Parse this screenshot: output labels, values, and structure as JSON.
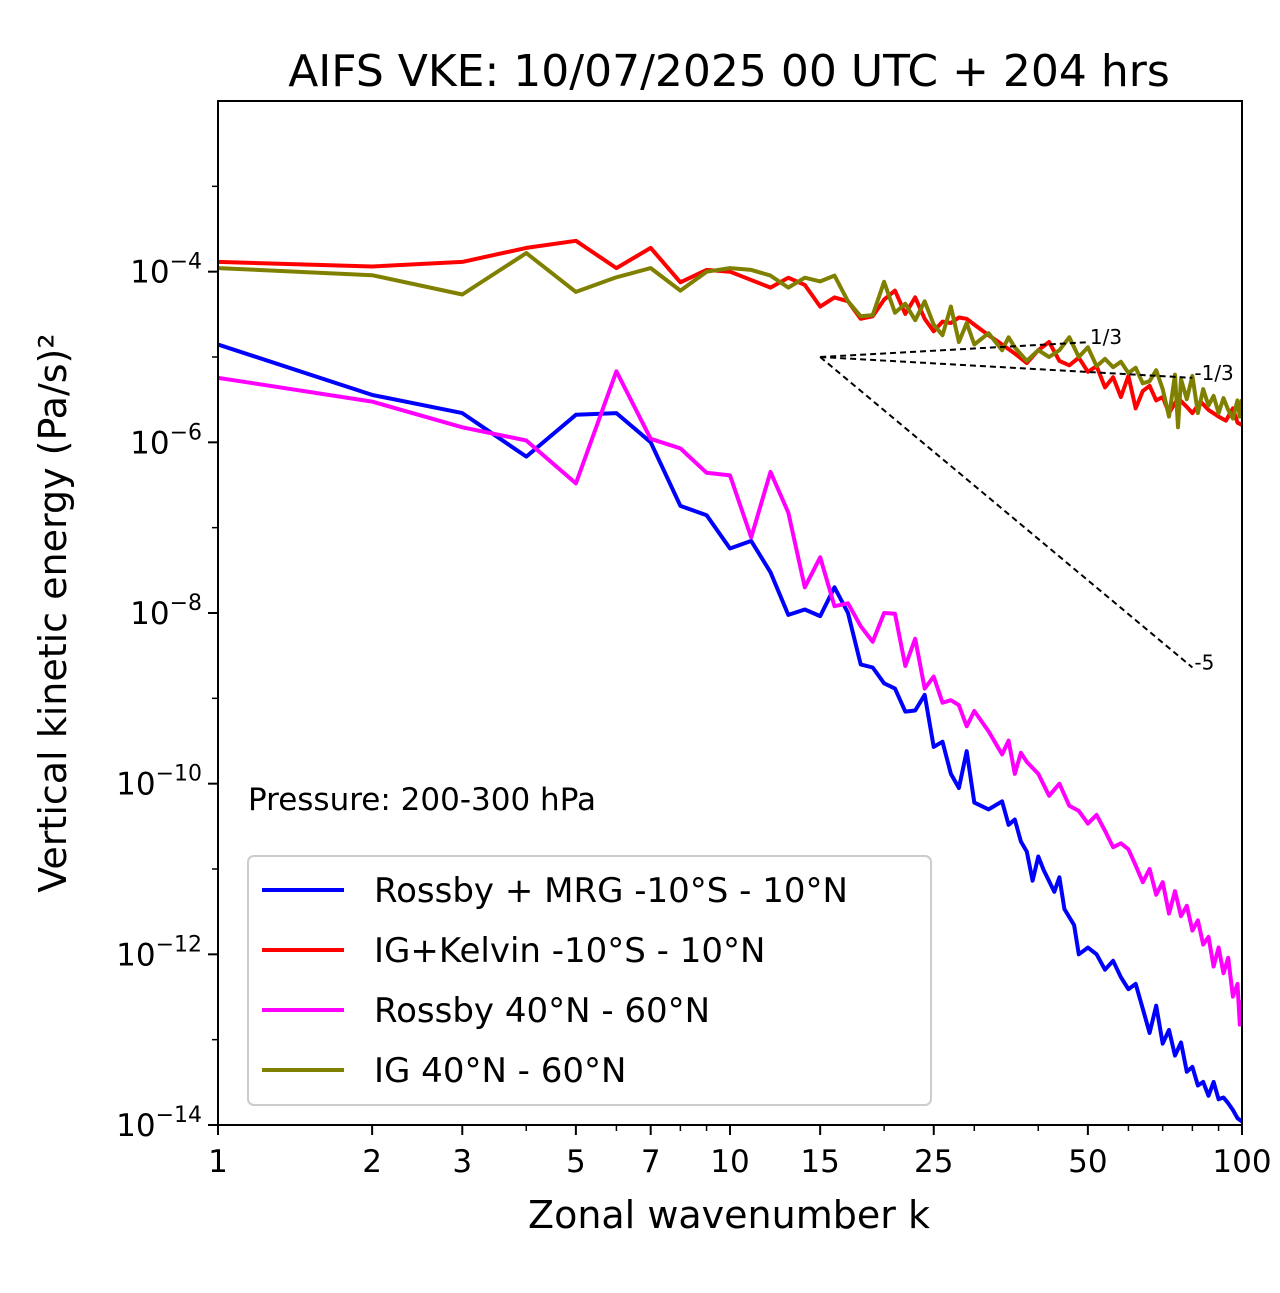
{
  "chart_data": {
    "type": "line",
    "title": "AIFS VKE: 10/07/2025 00 UTC + 204 hrs",
    "xlabel": "Zonal wavenumber k",
    "ylabel": "Vertical kinetic energy (Pa/s)²",
    "x_scale": "log",
    "y_scale": "log",
    "xlim": [
      1,
      100
    ],
    "ylim": [
      1e-14,
      0.01
    ],
    "x_ticks": [
      {
        "value": 1,
        "label": "1"
      },
      {
        "value": 2,
        "label": "2"
      },
      {
        "value": 3,
        "label": "3"
      },
      {
        "value": 5,
        "label": "5"
      },
      {
        "value": 7,
        "label": "7"
      },
      {
        "value": 10,
        "label": "10"
      },
      {
        "value": 15,
        "label": "15"
      },
      {
        "value": 25,
        "label": "25"
      },
      {
        "value": 50,
        "label": "50"
      },
      {
        "value": 100,
        "label": "100"
      }
    ],
    "y_ticks": [
      {
        "exp": -4,
        "label": "10−4"
      },
      {
        "exp": -6,
        "label": "10−6"
      },
      {
        "exp": -8,
        "label": "10−8"
      },
      {
        "exp": -10,
        "label": "10−10"
      },
      {
        "exp": -12,
        "label": "10−12"
      },
      {
        "exp": -14,
        "label": "10−14"
      }
    ],
    "annotation": "Pressure: 200-300 hPa",
    "legend_position": "lower-left",
    "reference_slopes": [
      {
        "label": "1/3",
        "x": [
          15,
          50
        ],
        "y": [
          1e-05,
          1.49e-05
        ]
      },
      {
        "label": "-1/3",
        "x": [
          15,
          80
        ],
        "y": [
          1e-05,
          5.7e-06
        ]
      },
      {
        "label": "-5",
        "x": [
          15,
          80
        ],
        "y": [
          1e-05,
          2.3e-09
        ]
      }
    ],
    "series": [
      {
        "name": "Rossby + MRG -10°S - 10°N",
        "color": "#0000ff",
        "points": [
          [
            1,
            1.4e-05
          ],
          [
            2,
            3.6e-06
          ],
          [
            3,
            2.2e-06
          ],
          [
            4,
            6.8e-07
          ],
          [
            5,
            2.1e-06
          ],
          [
            6,
            2.2e-06
          ],
          [
            7,
            1e-06
          ],
          [
            8,
            1.8e-07
          ],
          [
            9,
            1.4e-07
          ],
          [
            10,
            5.7e-08
          ],
          [
            11,
            7e-08
          ],
          [
            12,
            3e-08
          ],
          [
            13,
            9.5e-09
          ],
          [
            14,
            1.1e-08
          ],
          [
            15,
            9.2e-09
          ],
          [
            16,
            2e-08
          ],
          [
            17,
            1e-08
          ],
          [
            18,
            2.5e-09
          ],
          [
            19,
            2.3e-09
          ],
          [
            20,
            1.5e-09
          ],
          [
            21,
            1.3e-09
          ],
          [
            22,
            7e-10
          ],
          [
            23,
            7.2e-10
          ],
          [
            24,
            1.1e-09
          ],
          [
            25,
            2.7e-10
          ],
          [
            26,
            3.1e-10
          ],
          [
            27,
            1.3e-10
          ],
          [
            28,
            8.9e-11
          ],
          [
            29,
            2.4e-10
          ],
          [
            30,
            6e-11
          ],
          [
            32,
            5e-11
          ],
          [
            34,
            6.2e-11
          ],
          [
            35,
            3.3e-11
          ],
          [
            36,
            3.8e-11
          ],
          [
            37,
            2.1e-11
          ],
          [
            38,
            1.6e-11
          ],
          [
            39,
            7.3e-12
          ],
          [
            40,
            1.4e-11
          ],
          [
            41,
            9.7e-12
          ],
          [
            43,
            5.4e-12
          ],
          [
            44,
            8e-12
          ],
          [
            45,
            3.4e-12
          ],
          [
            47,
            2.2e-12
          ],
          [
            48,
            1e-12
          ],
          [
            50,
            1.2e-12
          ],
          [
            52,
            1e-12
          ],
          [
            54,
            6.6e-13
          ],
          [
            56,
            8.4e-13
          ],
          [
            58,
            5.4e-13
          ],
          [
            60,
            3.9e-13
          ],
          [
            62,
            4.5e-13
          ],
          [
            64,
            2.3e-13
          ],
          [
            66,
            1.2e-13
          ],
          [
            68,
            2.5e-13
          ],
          [
            70,
            9e-14
          ],
          [
            72,
            1.3e-13
          ],
          [
            74,
            6.5e-14
          ],
          [
            76,
            9.3e-14
          ],
          [
            78,
            4.2e-14
          ],
          [
            80,
            4.8e-14
          ],
          [
            82,
            2.9e-14
          ],
          [
            84,
            3.2e-14
          ],
          [
            86,
            2.2e-14
          ],
          [
            88,
            3.2e-14
          ],
          [
            90,
            2e-14
          ],
          [
            92,
            2.1e-14
          ],
          [
            94,
            1.8e-14
          ],
          [
            96,
            1.5e-14
          ],
          [
            98,
            1.2e-14
          ],
          [
            100,
            1.1e-14
          ]
        ]
      },
      {
        "name": "IG+Kelvin -10°S - 10°N",
        "color": "#ff0000",
        "points": [
          [
            1,
            0.00013
          ],
          [
            2,
            0.000115
          ],
          [
            3,
            0.00013
          ],
          [
            4,
            0.00019
          ],
          [
            5,
            0.00023
          ],
          [
            6,
            0.00011
          ],
          [
            7,
            0.00019
          ],
          [
            8,
            7.5e-05
          ],
          [
            9,
            0.000105
          ],
          [
            10,
            0.0001
          ],
          [
            12,
            6.5e-05
          ],
          [
            13,
            8.5e-05
          ],
          [
            14,
            7e-05
          ],
          [
            15,
            3.9e-05
          ],
          [
            16,
            5e-05
          ],
          [
            17,
            4.5e-05
          ],
          [
            18,
            2.8e-05
          ],
          [
            19,
            3e-05
          ],
          [
            20,
            4.7e-05
          ],
          [
            21,
            6e-05
          ],
          [
            22,
            3.2e-05
          ],
          [
            23,
            5e-05
          ],
          [
            24,
            2.8e-05
          ],
          [
            25,
            2e-05
          ],
          [
            26,
            2.6e-05
          ],
          [
            27,
            2.5e-05
          ],
          [
            28,
            2.9e-05
          ],
          [
            29,
            2.8e-05
          ],
          [
            30,
            2.4e-05
          ],
          [
            32,
            1.8e-05
          ],
          [
            34,
            1.4e-05
          ],
          [
            36,
            1.1e-05
          ],
          [
            38,
            8.5e-06
          ],
          [
            40,
            1.2e-05
          ],
          [
            42,
            1.5e-05
          ],
          [
            44,
            9e-06
          ],
          [
            46,
            8e-06
          ],
          [
            48,
            9.8e-06
          ],
          [
            50,
            6.7e-06
          ],
          [
            52,
            7.8e-06
          ],
          [
            54,
            4.4e-06
          ],
          [
            56,
            5.8e-06
          ],
          [
            58,
            3.4e-06
          ],
          [
            60,
            6e-06
          ],
          [
            62,
            2.5e-06
          ],
          [
            64,
            4e-06
          ],
          [
            66,
            4.6e-06
          ],
          [
            68,
            3.1e-06
          ],
          [
            70,
            3.4e-06
          ],
          [
            72,
            2.2e-06
          ],
          [
            75,
            3.3e-06
          ],
          [
            78,
            2.6e-06
          ],
          [
            80,
            2.2e-06
          ],
          [
            83,
            3e-06
          ],
          [
            86,
            2.4e-06
          ],
          [
            90,
            2e-06
          ],
          [
            93,
            1.8e-06
          ],
          [
            96,
            2.5e-06
          ],
          [
            98,
            1.7e-06
          ],
          [
            100,
            1.6e-06
          ]
        ]
      },
      {
        "name": "Rossby 40°N - 60°N",
        "color": "#ff00ff",
        "points": [
          [
            1,
            5.7e-06
          ],
          [
            2,
            3e-06
          ],
          [
            3,
            1.5e-06
          ],
          [
            4,
            1.05e-06
          ],
          [
            5,
            3.3e-07
          ],
          [
            6,
            6.8e-06
          ],
          [
            7,
            1.1e-06
          ],
          [
            8,
            8.5e-07
          ],
          [
            9,
            4.4e-07
          ],
          [
            10,
            4.1e-07
          ],
          [
            11,
            7.7e-08
          ],
          [
            12,
            4.5e-07
          ],
          [
            13,
            1.5e-07
          ],
          [
            14,
            2e-08
          ],
          [
            15,
            4.5e-08
          ],
          [
            16,
            1.2e-08
          ],
          [
            17,
            1.3e-08
          ],
          [
            18,
            7e-09
          ],
          [
            19,
            4.6e-09
          ],
          [
            20,
            1e-08
          ],
          [
            21,
            9.8e-09
          ],
          [
            22,
            2.4e-09
          ],
          [
            23,
            5e-09
          ],
          [
            24,
            1.3e-09
          ],
          [
            25,
            1.8e-09
          ],
          [
            26,
            8.9e-10
          ],
          [
            27,
            9.5e-10
          ],
          [
            28,
            8.3e-10
          ],
          [
            29,
            4.7e-10
          ],
          [
            30,
            7.1e-10
          ],
          [
            32,
            4.1e-10
          ],
          [
            34,
            2.2e-10
          ],
          [
            35,
            3.2e-10
          ],
          [
            36,
            1.3e-10
          ],
          [
            37,
            2.3e-10
          ],
          [
            38,
            1.8e-10
          ],
          [
            40,
            1.3e-10
          ],
          [
            42,
            7.2e-11
          ],
          [
            44,
            1e-10
          ],
          [
            46,
            5.5e-11
          ],
          [
            48,
            4.8e-11
          ],
          [
            50,
            3.4e-11
          ],
          [
            52,
            4.3e-11
          ],
          [
            54,
            2.8e-11
          ],
          [
            56,
            1.8e-11
          ],
          [
            58,
            2e-11
          ],
          [
            60,
            1.7e-11
          ],
          [
            62,
            1.1e-11
          ],
          [
            64,
            7e-12
          ],
          [
            66,
            1e-11
          ],
          [
            68,
            5e-12
          ],
          [
            70,
            7e-12
          ],
          [
            72,
            3e-12
          ],
          [
            74,
            5.5e-12
          ],
          [
            76,
            2.8e-12
          ],
          [
            78,
            3.7e-12
          ],
          [
            80,
            1.9e-12
          ],
          [
            82,
            2.5e-12
          ],
          [
            84,
            1.3e-12
          ],
          [
            86,
            1.6e-12
          ],
          [
            88,
            7.2e-13
          ],
          [
            90,
            1.2e-12
          ],
          [
            92,
            6e-13
          ],
          [
            94,
            9.1e-13
          ],
          [
            96,
            3.2e-13
          ],
          [
            98,
            4.5e-13
          ],
          [
            99,
            1.5e-13
          ],
          [
            100,
            2.9e-13
          ]
        ]
      },
      {
        "name": "IG 40°N - 60°N",
        "color": "#808000",
        "points": [
          [
            1,
            0.00011
          ],
          [
            2,
            9.1e-05
          ],
          [
            3,
            5.4e-05
          ],
          [
            4,
            0.000165
          ],
          [
            5,
            5.8e-05
          ],
          [
            6,
            8.6e-05
          ],
          [
            7,
            0.00011
          ],
          [
            8,
            6e-05
          ],
          [
            9,
            0.0001
          ],
          [
            10,
            0.00011
          ],
          [
            11,
            0.000105
          ],
          [
            12,
            9e-05
          ],
          [
            13,
            6.5e-05
          ],
          [
            14,
            8.5e-05
          ],
          [
            15,
            7.7e-05
          ],
          [
            16,
            9e-05
          ],
          [
            17,
            4.5e-05
          ],
          [
            18,
            3e-05
          ],
          [
            19,
            3.1e-05
          ],
          [
            20,
            7.6e-05
          ],
          [
            21,
            3.3e-05
          ],
          [
            22,
            4.2e-05
          ],
          [
            23,
            2.7e-05
          ],
          [
            24,
            4.5e-05
          ],
          [
            25,
            2.4e-05
          ],
          [
            26,
            1.8e-05
          ],
          [
            27,
            3.9e-05
          ],
          [
            28,
            1.5e-05
          ],
          [
            29,
            2.5e-05
          ],
          [
            30,
            1.4e-05
          ],
          [
            32,
            1.9e-05
          ],
          [
            34,
            1.2e-05
          ],
          [
            35,
            1.7e-05
          ],
          [
            36,
            1.3e-05
          ],
          [
            38,
            9e-06
          ],
          [
            40,
            1.2e-05
          ],
          [
            42,
            1e-05
          ],
          [
            44,
            1.2e-05
          ],
          [
            46,
            1.7e-05
          ],
          [
            48,
            1e-05
          ],
          [
            50,
            1.3e-05
          ],
          [
            52,
            7.8e-06
          ],
          [
            54,
            9.5e-06
          ],
          [
            56,
            7.6e-06
          ],
          [
            58,
            8.8e-06
          ],
          [
            60,
            6.5e-06
          ],
          [
            62,
            7.5e-06
          ],
          [
            64,
            4.9e-06
          ],
          [
            66,
            5.2e-06
          ],
          [
            68,
            7e-06
          ],
          [
            70,
            4.2e-06
          ],
          [
            72,
            2e-06
          ],
          [
            74,
            6.2e-06
          ],
          [
            75,
            1.5e-06
          ],
          [
            76,
            5.5e-06
          ],
          [
            78,
            3.2e-06
          ],
          [
            80,
            6e-06
          ],
          [
            82,
            2.2e-06
          ],
          [
            84,
            4.2e-06
          ],
          [
            86,
            2.7e-06
          ],
          [
            88,
            3.5e-06
          ],
          [
            90,
            2.2e-06
          ],
          [
            92,
            3.3e-06
          ],
          [
            94,
            2.4e-06
          ],
          [
            96,
            1.9e-06
          ],
          [
            98,
            3.1e-06
          ],
          [
            99,
            2e-06
          ],
          [
            100,
            3.2e-06
          ]
        ]
      }
    ]
  }
}
